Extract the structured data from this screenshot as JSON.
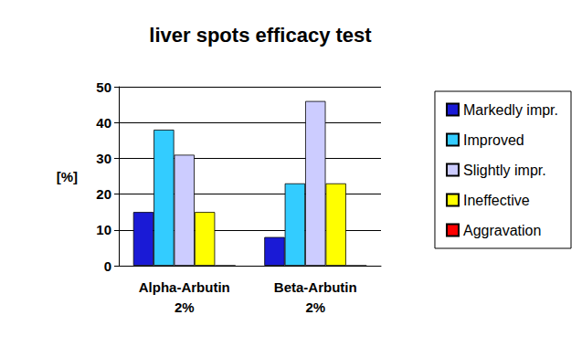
{
  "chart_data": {
    "type": "bar",
    "title": "liver spots efficacy test",
    "y_label": "[%]",
    "categories": [
      "Alpha-Arbutin\n2%",
      "Beta-Arbutin\n2%"
    ],
    "series": [
      {
        "name": "Markedly impr.",
        "color": "#1a1ad6",
        "values": [
          15,
          8
        ]
      },
      {
        "name": "Improved",
        "color": "#33ccff",
        "values": [
          38,
          23
        ]
      },
      {
        "name": "Slightly impr.",
        "color": "#ccccff",
        "values": [
          31,
          46
        ]
      },
      {
        "name": "Ineffective",
        "color": "#ffff00",
        "values": [
          15,
          23
        ]
      },
      {
        "name": "Aggravation",
        "color": "#ff0000",
        "values": [
          0,
          0
        ]
      }
    ],
    "ylim": [
      0,
      50
    ],
    "yticks": [
      0,
      10,
      20,
      30,
      40,
      50
    ],
    "grid": true,
    "legend": "right"
  }
}
